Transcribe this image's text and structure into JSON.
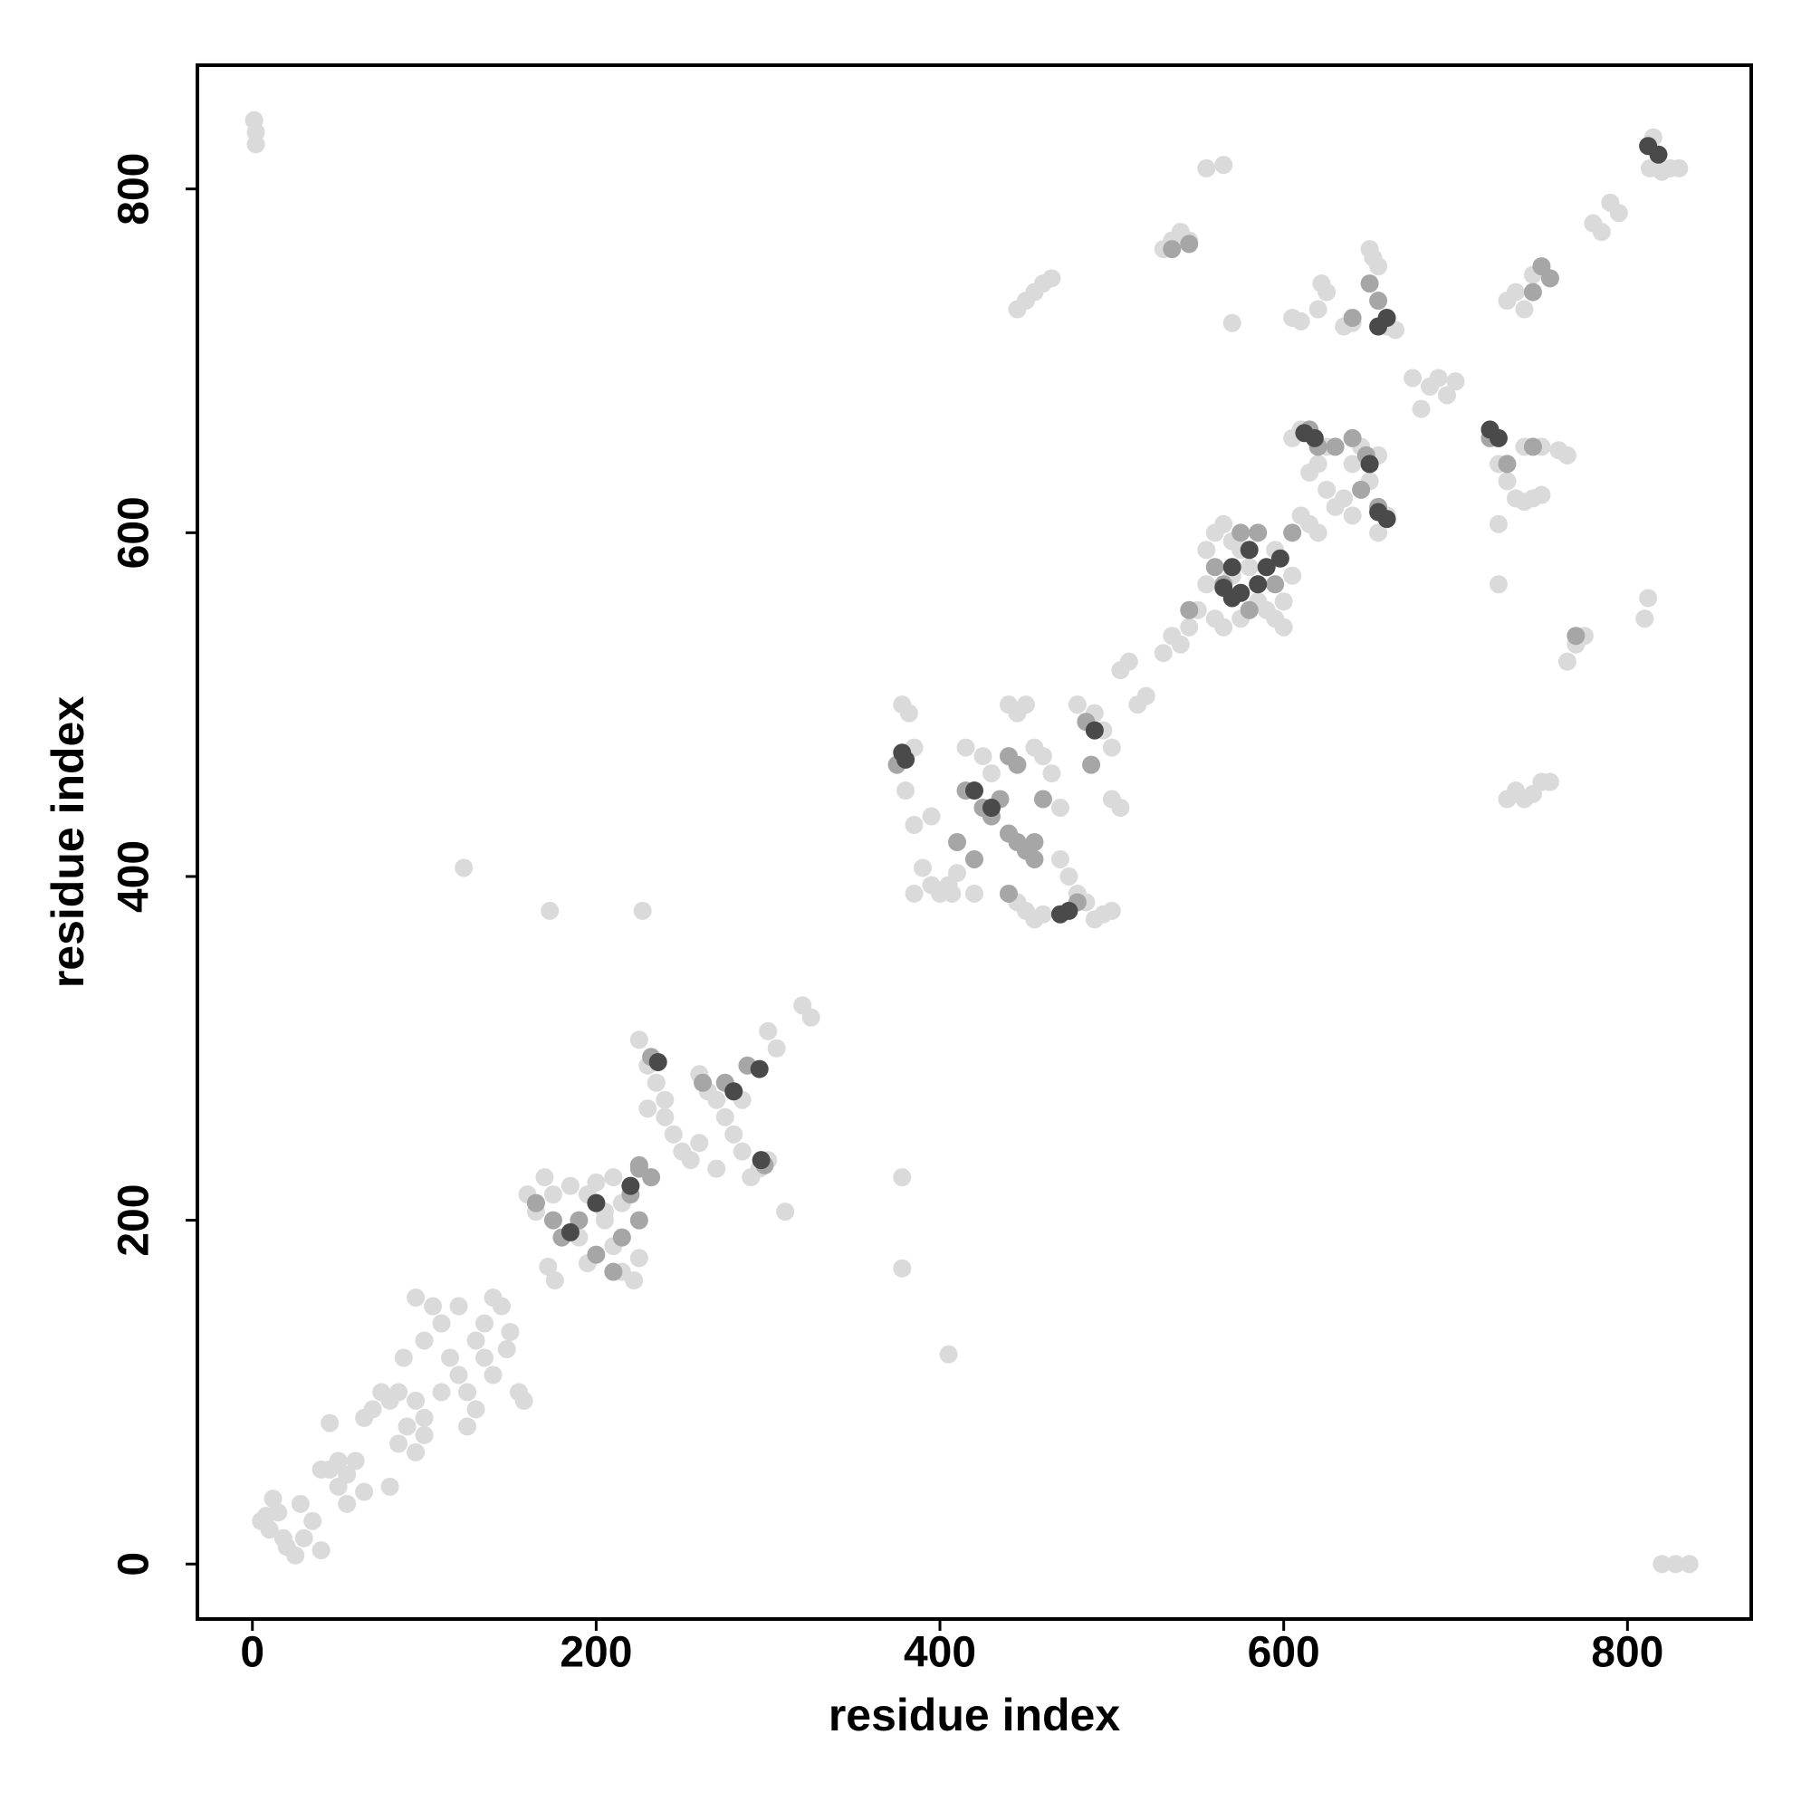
{
  "chart_data": {
    "type": "scatter",
    "xlabel": "residue index",
    "ylabel": "residue index",
    "xlim": [
      -32,
      872
    ],
    "ylim": [
      -32,
      872
    ],
    "xticks": [
      0,
      200,
      400,
      600,
      800
    ],
    "yticks": [
      0,
      200,
      400,
      600,
      800
    ],
    "grid": false,
    "series": [
      {
        "color": "#dadada",
        "x": [
          1,
          2,
          2,
          820,
          828,
          836,
          5,
          10,
          15,
          20,
          25,
          12,
          30,
          35,
          40,
          18,
          8,
          28,
          45,
          50,
          55,
          60,
          65,
          70,
          75,
          80,
          85,
          90,
          95,
          100,
          50,
          55,
          40,
          85,
          95,
          100,
          80,
          65,
          45,
          95,
          105,
          110,
          100,
          115,
          120,
          125,
          130,
          135,
          140,
          145,
          150,
          155,
          158,
          130,
          110,
          140,
          120,
          135,
          148,
          125,
          88,
          123,
          173,
          227,
          172,
          176,
          378,
          378,
          405,
          160,
          165,
          170,
          175,
          185,
          195,
          200,
          210,
          205,
          210,
          215,
          222,
          225,
          215,
          195,
          190,
          205,
          225,
          230,
          235,
          240,
          245,
          250,
          255,
          260,
          265,
          270,
          275,
          280,
          285,
          290,
          295,
          285,
          300,
          310,
          300,
          305,
          320,
          325,
          260,
          270,
          230,
          240,
          378,
          382,
          385,
          380,
          385,
          390,
          395,
          400,
          405,
          410,
          415,
          425,
          440,
          445,
          450,
          455,
          460,
          465,
          470,
          470,
          475,
          480,
          485,
          490,
          495,
          500,
          480,
          490,
          495,
          500,
          500,
          505,
          445,
          450,
          455,
          460,
          430,
          395,
          385,
          407,
          420,
          505,
          510,
          515,
          520,
          530,
          535,
          540,
          545,
          550,
          555,
          560,
          565,
          570,
          575,
          580,
          585,
          590,
          595,
          600,
          605,
          610,
          615,
          620,
          555,
          560,
          565,
          575,
          600,
          595,
          570,
          605,
          610,
          615,
          620,
          625,
          630,
          635,
          640,
          645,
          650,
          655,
          625,
          660,
          655,
          640,
          530,
          535,
          540,
          545,
          450,
          455,
          460,
          465,
          445,
          555,
          565,
          570,
          605,
          610,
          620,
          622,
          625,
          635,
          640,
          650,
          652,
          655,
          660,
          665,
          675,
          680,
          685,
          690,
          695,
          700,
          720,
          725,
          730,
          735,
          740,
          745,
          750,
          725,
          725,
          740,
          750,
          760,
          765,
          735,
          740,
          745,
          750,
          755,
          730,
          765,
          770,
          775,
          780,
          785,
          790,
          795,
          813,
          820,
          825,
          830,
          812,
          810,
          730,
          740,
          745,
          735,
          815
        ],
        "values": [
          840,
          833,
          826,
          0,
          0,
          0,
          25,
          20,
          30,
          10,
          5,
          38,
          15,
          25,
          8,
          15,
          28,
          35,
          55,
          45,
          35,
          60,
          85,
          90,
          100,
          95,
          70,
          80,
          65,
          75,
          60,
          52,
          55,
          100,
          95,
          85,
          45,
          42,
          82,
          155,
          150,
          140,
          130,
          120,
          110,
          100,
          130,
          140,
          155,
          150,
          135,
          100,
          95,
          90,
          100,
          110,
          150,
          120,
          125,
          80,
          120,
          405,
          380,
          380,
          173,
          165,
          225,
          172,
          122,
          215,
          205,
          225,
          215,
          220,
          215,
          222,
          225,
          200,
          185,
          170,
          165,
          178,
          210,
          175,
          190,
          205,
          305,
          290,
          280,
          260,
          250,
          240,
          235,
          285,
          275,
          270,
          260,
          250,
          240,
          225,
          230,
          270,
          235,
          205,
          310,
          300,
          325,
          318,
          245,
          230,
          265,
          270,
          500,
          495,
          475,
          450,
          430,
          405,
          395,
          390,
          395,
          402,
          475,
          470,
          500,
          495,
          500,
          475,
          470,
          460,
          440,
          410,
          400,
          390,
          385,
          375,
          378,
          380,
          500,
          495,
          485,
          475,
          445,
          440,
          385,
          380,
          375,
          378,
          460,
          435,
          390,
          390,
          390,
          520,
          525,
          500,
          505,
          530,
          540,
          535,
          545,
          555,
          570,
          600,
          605,
          595,
          590,
          580,
          560,
          555,
          550,
          560,
          575,
          610,
          605,
          600,
          590,
          550,
          545,
          550,
          545,
          590,
          575,
          655,
          660,
          635,
          640,
          625,
          615,
          620,
          640,
          650,
          630,
          645,
          650,
          610,
          600,
          610,
          765,
          770,
          775,
          770,
          735,
          740,
          745,
          748,
          730,
          812,
          814,
          722,
          725,
          723,
          730,
          745,
          740,
          720,
          722,
          765,
          760,
          755,
          720,
          718,
          690,
          672,
          685,
          690,
          680,
          688,
          660,
          640,
          630,
          620,
          618,
          620,
          622,
          605,
          570,
          650,
          650,
          648,
          645,
          450,
          445,
          448,
          455,
          455,
          445,
          525,
          535,
          540,
          780,
          775,
          792,
          786,
          812,
          810,
          812,
          812,
          562,
          550,
          735,
          730,
          750,
          740,
          830
        ]
      },
      {
        "color": "#a6a6a6",
        "x": [
          165,
          175,
          180,
          190,
          200,
          210,
          220,
          215,
          225,
          225,
          232,
          275,
          288,
          225,
          232,
          298,
          262,
          440,
          445,
          415,
          425,
          430,
          440,
          445,
          450,
          455,
          410,
          420,
          435,
          460,
          480,
          375,
          485,
          488,
          440,
          455,
          560,
          565,
          575,
          585,
          595,
          580,
          545,
          605,
          620,
          630,
          640,
          648,
          650,
          655,
          615,
          645,
          535,
          545,
          650,
          655,
          745,
          750,
          755,
          730,
          770,
          720,
          745,
          640
        ],
        "values": [
          210,
          200,
          190,
          200,
          180,
          170,
          215,
          190,
          200,
          230,
          295,
          280,
          290,
          232,
          225,
          232,
          280,
          470,
          465,
          450,
          440,
          435,
          425,
          420,
          415,
          410,
          420,
          410,
          445,
          445,
          385,
          465,
          490,
          465,
          390,
          420,
          580,
          570,
          600,
          600,
          570,
          555,
          555,
          600,
          650,
          650,
          655,
          645,
          640,
          615,
          660,
          625,
          765,
          768,
          745,
          735,
          740,
          755,
          748,
          640,
          540,
          655,
          650,
          725
        ]
      },
      {
        "color": "#4a4a4a",
        "x": [
          185,
          220,
          200,
          236,
          280,
          295,
          296,
          378,
          380,
          420,
          430,
          470,
          475,
          490,
          565,
          570,
          575,
          580,
          585,
          590,
          598,
          570,
          612,
          618,
          655,
          660,
          650,
          720,
          725,
          812,
          818,
          660,
          655
        ],
        "values": [
          193,
          220,
          210,
          292,
          275,
          288,
          235,
          472,
          468,
          450,
          440,
          378,
          380,
          485,
          568,
          580,
          565,
          590,
          570,
          580,
          585,
          562,
          658,
          655,
          612,
          608,
          640,
          660,
          655,
          825,
          820,
          725,
          720
        ]
      }
    ]
  }
}
